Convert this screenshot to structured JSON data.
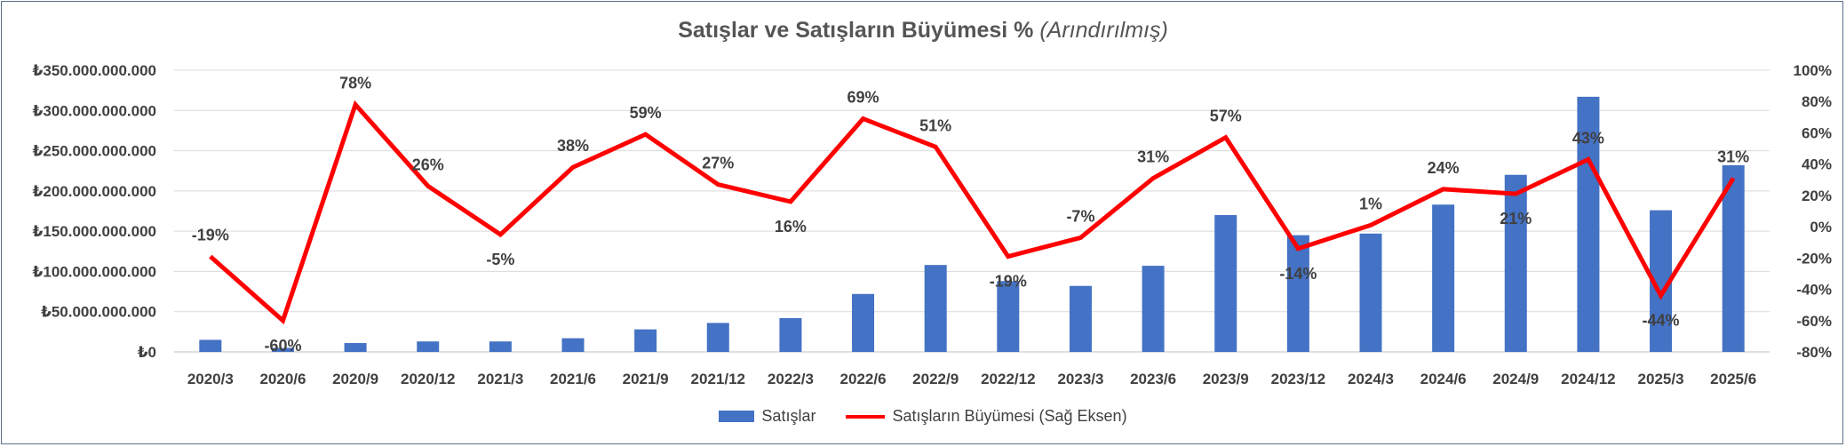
{
  "chart_data": {
    "type": "bar",
    "title": "Satışlar ve Satışların Büyümesi %",
    "subtitle": "(Arındırılmış)",
    "categories": [
      "2020/3",
      "2020/6",
      "2020/9",
      "2020/12",
      "2021/3",
      "2021/6",
      "2021/9",
      "2021/12",
      "2022/3",
      "2022/6",
      "2022/9",
      "2022/12",
      "2023/3",
      "2023/6",
      "2023/9",
      "2023/12",
      "2024/3",
      "2024/6",
      "2024/9",
      "2024/12",
      "2025/3",
      "2025/6"
    ],
    "series": [
      {
        "name": "Satışlar",
        "type": "bar",
        "axis": "left",
        "color": "#4472c4",
        "values": [
          15000000000,
          5000000000,
          11000000000,
          13000000000,
          13000000000,
          17000000000,
          28000000000,
          36000000000,
          42000000000,
          72000000000,
          108000000000,
          88000000000,
          82000000000,
          107000000000,
          170000000000,
          145000000000,
          147000000000,
          183000000000,
          220000000000,
          317000000000,
          176000000000,
          232000000000
        ]
      },
      {
        "name": "Satışların Büyümesi (Sağ Eksen)",
        "type": "line",
        "axis": "right",
        "color": "#ff0000",
        "values": [
          -19,
          -60,
          78,
          26,
          -5,
          38,
          59,
          27,
          16,
          69,
          51,
          -19,
          -7,
          31,
          57,
          -14,
          1,
          24,
          21,
          43,
          -44,
          31
        ],
        "labels": [
          "-19%",
          "-60%",
          "78%",
          "26%",
          "-5%",
          "38%",
          "59%",
          "27%",
          "16%",
          "69%",
          "51%",
          "-19%",
          "-7%",
          "31%",
          "57%",
          "-14%",
          "1%",
          "24%",
          "21%",
          "43%",
          "-44%",
          "31%"
        ]
      }
    ],
    "yleft": {
      "ylim": [
        0,
        350000000000
      ],
      "ticks": [
        0,
        50000000000,
        100000000000,
        150000000000,
        200000000000,
        250000000000,
        300000000000,
        350000000000
      ],
      "tick_labels": [
        "₺0",
        "₺50.000.000.000",
        "₺100.000.000.000",
        "₺150.000.000.000",
        "₺200.000.000.000",
        "₺250.000.000.000",
        "₺300.000.000.000",
        "₺350.000.000.000"
      ]
    },
    "yright": {
      "ylim": [
        -80,
        100
      ],
      "ticks": [
        -80,
        -60,
        -40,
        -20,
        0,
        20,
        40,
        60,
        80,
        100
      ],
      "tick_labels": [
        "-80%",
        "-60%",
        "-40%",
        "-20%",
        "0%",
        "20%",
        "40%",
        "60%",
        "80%",
        "100%"
      ]
    },
    "grid": true,
    "legend_position": "bottom"
  },
  "legend": {
    "bar_label": "Satışlar",
    "line_label": "Satışların Büyümesi (Sağ Eksen)"
  }
}
